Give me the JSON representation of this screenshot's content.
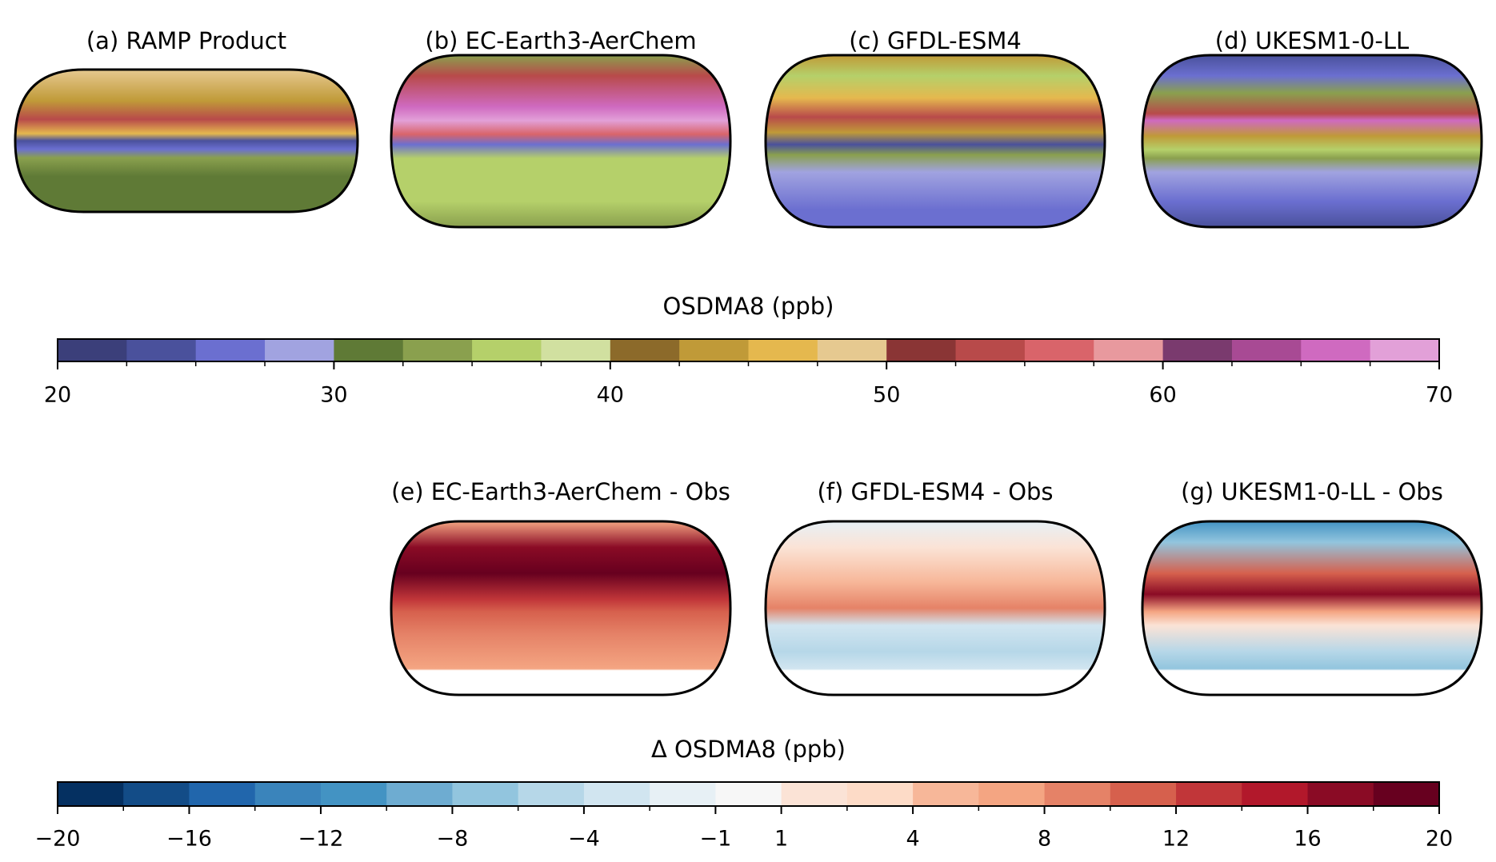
{
  "panels_top": [
    {
      "title": "(a) RAMP Product"
    },
    {
      "title": "(b) EC-Earth3-AerChem"
    },
    {
      "title": "(c) GFDL-ESM4"
    },
    {
      "title": "(d) UKESM1-0-LL"
    }
  ],
  "colorbar_abs": {
    "label": "OSDMA8 (ppb)",
    "boundaries": [
      20,
      22.5,
      25,
      27.5,
      30,
      32.5,
      35,
      37.5,
      40,
      42.5,
      45,
      47.5,
      50,
      52.5,
      55,
      57.5,
      60,
      62.5,
      65,
      67.5,
      70
    ],
    "colors": [
      "#3b3f7a",
      "#4a519c",
      "#6b6fd0",
      "#a1a3e0",
      "#5f7a36",
      "#8aa04e",
      "#b5d06a",
      "#d1e0a0",
      "#8c6a2a",
      "#c09a38",
      "#e5b84e",
      "#e6c990",
      "#8a3535",
      "#b84a4a",
      "#d9646a",
      "#e8999e",
      "#7a3a6e",
      "#a84a94",
      "#cf6ac0",
      "#e2a0d8"
    ],
    "ticks": [
      20,
      30,
      40,
      50,
      60,
      70
    ]
  },
  "panels_diff": [
    {
      "title": "(e) EC-Earth3-AerChem - Obs"
    },
    {
      "title": "(f) GFDL-ESM4 - Obs"
    },
    {
      "title": "(g) UKESM1-0-LL - Obs"
    }
  ],
  "colorbar_diff": {
    "label": "Δ OSDMA8 (ppb)",
    "boundaries": [
      -20,
      -18,
      -16,
      -14,
      -12,
      -10,
      -8,
      -6,
      -4,
      -2,
      -1,
      1,
      2,
      4,
      6,
      8,
      10,
      12,
      14,
      16,
      18,
      20
    ],
    "colors": [
      "#053061",
      "#134c87",
      "#2166ac",
      "#3a84bb",
      "#4393c3",
      "#6eacd1",
      "#92c5de",
      "#b6d7e8",
      "#d1e5f0",
      "#e7f0f5",
      "#f7f7f7",
      "#fbe3d6",
      "#fddbc7",
      "#f7b799",
      "#f4a582",
      "#e58267",
      "#d6604d",
      "#c13639",
      "#b2182b",
      "#8a0b25",
      "#67001f"
    ],
    "ticks": [
      {
        "value": -20,
        "label": "−20"
      },
      {
        "value": -16,
        "label": "−16"
      },
      {
        "value": -12,
        "label": "−12"
      },
      {
        "value": -8,
        "label": "−8"
      },
      {
        "value": -4,
        "label": "−4"
      },
      {
        "value": -1,
        "label": "−1"
      },
      1,
      4,
      8,
      12,
      16,
      20
    ]
  }
}
